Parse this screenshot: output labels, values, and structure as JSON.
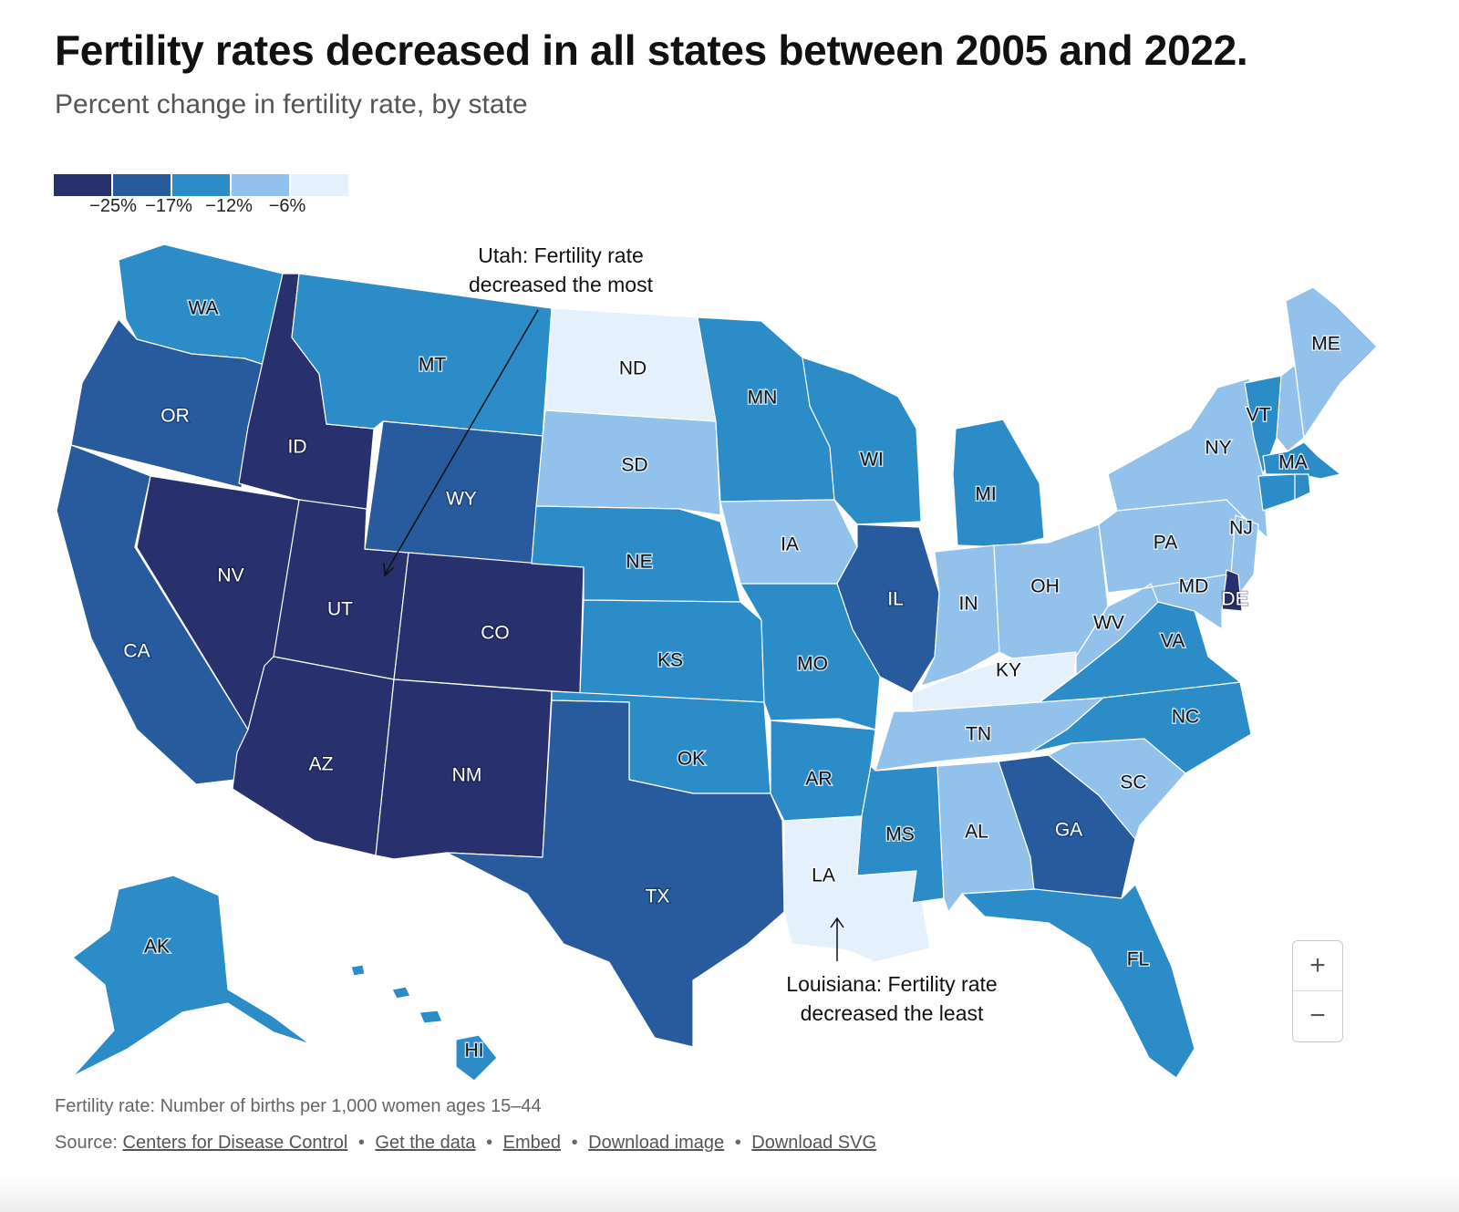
{
  "title": "Fertility rates decreased in all states between 2005 and 2022.",
  "subtitle": "Percent change in fertility rate, by state",
  "legend": {
    "colors": [
      "#28306e",
      "#285a9e",
      "#2b8cc8",
      "#92c1eb",
      "#e4f0fb"
    ],
    "thresholds": [
      "−25%",
      "−17%",
      "−12%",
      "−6%"
    ]
  },
  "chart_data": {
    "type": "choropleth",
    "value_name": "Percent change in fertility rate",
    "bins": [
      {
        "range": "below −25%",
        "color": "#28306e"
      },
      {
        "range": "−25% to −17%",
        "color": "#285a9e"
      },
      {
        "range": "−17% to −12%",
        "color": "#2b8cc8"
      },
      {
        "range": "−12% to −6%",
        "color": "#92c1eb"
      },
      {
        "range": "above −6%",
        "color": "#e4f0fb"
      }
    ],
    "states": [
      {
        "code": "WA",
        "bin": 2
      },
      {
        "code": "OR",
        "bin": 1
      },
      {
        "code": "CA",
        "bin": 1
      },
      {
        "code": "ID",
        "bin": 0
      },
      {
        "code": "NV",
        "bin": 0
      },
      {
        "code": "UT",
        "bin": 0
      },
      {
        "code": "AZ",
        "bin": 0
      },
      {
        "code": "MT",
        "bin": 2
      },
      {
        "code": "WY",
        "bin": 1
      },
      {
        "code": "CO",
        "bin": 0
      },
      {
        "code": "NM",
        "bin": 0
      },
      {
        "code": "ND",
        "bin": 4
      },
      {
        "code": "SD",
        "bin": 3
      },
      {
        "code": "NE",
        "bin": 2
      },
      {
        "code": "KS",
        "bin": 2
      },
      {
        "code": "OK",
        "bin": 2
      },
      {
        "code": "TX",
        "bin": 1
      },
      {
        "code": "MN",
        "bin": 2
      },
      {
        "code": "IA",
        "bin": 3
      },
      {
        "code": "MO",
        "bin": 2
      },
      {
        "code": "AR",
        "bin": 2
      },
      {
        "code": "LA",
        "bin": 4
      },
      {
        "code": "WI",
        "bin": 2
      },
      {
        "code": "IL",
        "bin": 1
      },
      {
        "code": "MI",
        "bin": 2
      },
      {
        "code": "IN",
        "bin": 3
      },
      {
        "code": "OH",
        "bin": 3
      },
      {
        "code": "KY",
        "bin": 4
      },
      {
        "code": "TN",
        "bin": 3
      },
      {
        "code": "MS",
        "bin": 2
      },
      {
        "code": "AL",
        "bin": 3
      },
      {
        "code": "GA",
        "bin": 1
      },
      {
        "code": "FL",
        "bin": 2
      },
      {
        "code": "SC",
        "bin": 3
      },
      {
        "code": "NC",
        "bin": 2
      },
      {
        "code": "VA",
        "bin": 2
      },
      {
        "code": "WV",
        "bin": 3
      },
      {
        "code": "PA",
        "bin": 3
      },
      {
        "code": "NY",
        "bin": 3
      },
      {
        "code": "VT",
        "bin": 2
      },
      {
        "code": "NH",
        "bin": 3
      },
      {
        "code": "ME",
        "bin": 3
      },
      {
        "code": "MA",
        "bin": 2
      },
      {
        "code": "CT",
        "bin": 2
      },
      {
        "code": "RI",
        "bin": 2
      },
      {
        "code": "NJ",
        "bin": 3
      },
      {
        "code": "DE",
        "bin": 0
      },
      {
        "code": "MD",
        "bin": 3
      },
      {
        "code": "AK",
        "bin": 2
      },
      {
        "code": "HI",
        "bin": 2
      }
    ]
  },
  "annotations": {
    "utah": [
      "Utah: Fertility rate",
      "decreased the most"
    ],
    "louisiana": [
      "Louisiana: Fertility rate",
      "decreased the least"
    ]
  },
  "zoom": {
    "in_label": "+",
    "out_label": "−"
  },
  "footnote": "Fertility rate: Number of births per 1,000 women ages 15–44",
  "source": {
    "prefix": "Source:",
    "link": "Centers for Disease Control",
    "actions": [
      "Get the data",
      "Embed",
      "Download image",
      "Download SVG"
    ]
  }
}
